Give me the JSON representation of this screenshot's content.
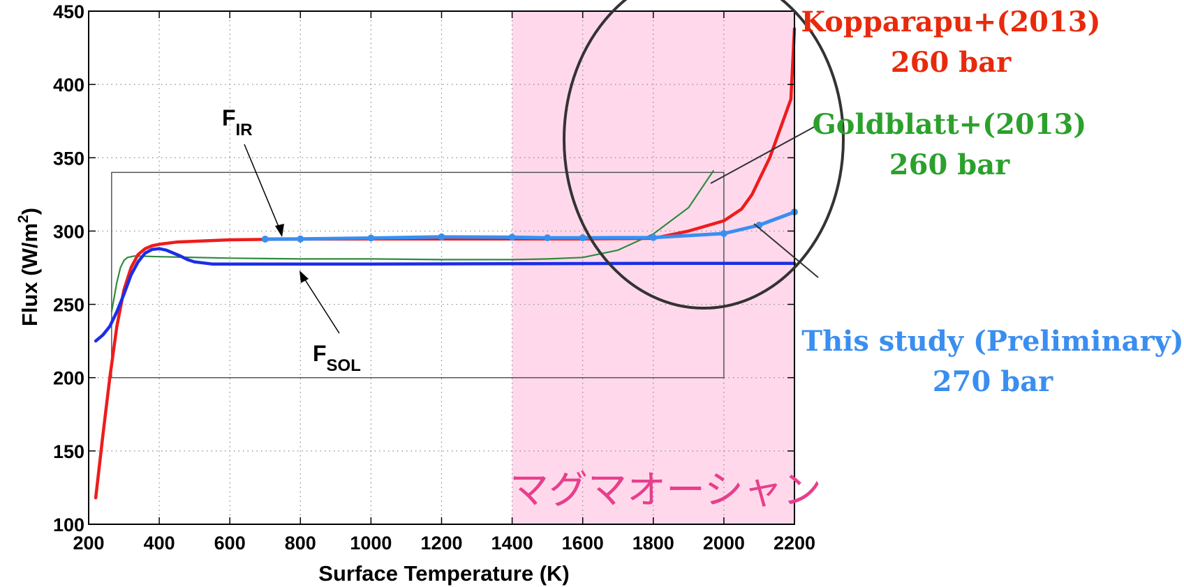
{
  "chart_data": {
    "type": "line",
    "xlabel": "Surface Temperature (K)",
    "ylabel": "Flux (W/m²)",
    "ylabel_parts": {
      "main": "Flux (W/m",
      "sup": "2",
      "end": ")"
    },
    "xlim": [
      200,
      2200
    ],
    "ylim": [
      100,
      450
    ],
    "xticks": [
      "200",
      "400",
      "600",
      "800",
      "1000",
      "1200",
      "1400",
      "1600",
      "1800",
      "2000",
      "2200"
    ],
    "yticks": [
      "100",
      "150",
      "200",
      "250",
      "300",
      "350",
      "400",
      "450"
    ],
    "grid": true,
    "shaded_region": {
      "x_start": 1400,
      "x_end": 2200,
      "label": "マグマオーシャン",
      "color": "#ffd9eb",
      "label_color": "#e83e8c"
    },
    "inset_box": {
      "x_start": 265,
      "x_end": 2000,
      "y_start": 200,
      "y_end": 340
    },
    "series": [
      {
        "id": "kopparapu-ir",
        "color": "#ee1c1c",
        "x": [
          220,
          240,
          260,
          280,
          300,
          320,
          340,
          360,
          380,
          400,
          450,
          500,
          600,
          700,
          800,
          1000,
          1200,
          1400,
          1600,
          1800,
          1900,
          2000,
          2050,
          2080,
          2100,
          2130,
          2160,
          2190,
          2200
        ],
        "y": [
          118,
          160,
          200,
          235,
          260,
          275,
          284,
          288,
          290,
          291,
          292.5,
          293,
          294,
          294.3,
          294.5,
          294.6,
          294.6,
          294.6,
          294.6,
          295,
          300,
          307,
          315,
          325,
          335,
          350,
          370,
          390,
          438
        ]
      },
      {
        "id": "goldblatt",
        "color": "#2e8b3e",
        "x": [
          265,
          280,
          290,
          300,
          310,
          330,
          400,
          600,
          800,
          1000,
          1200,
          1400,
          1500,
          1600,
          1700,
          1800,
          1900,
          1970
        ],
        "y": [
          245,
          265,
          275,
          280,
          282,
          283,
          282.5,
          281.5,
          281,
          281,
          280.5,
          280.5,
          281,
          282,
          287,
          298,
          316,
          341
        ]
      },
      {
        "id": "this-study-ir",
        "color": "#3a8ef0",
        "x": [
          700,
          800,
          1000,
          1200,
          1400,
          1500,
          1600,
          1800,
          2000,
          2100,
          2200
        ],
        "y": [
          294.5,
          294.6,
          295.2,
          296,
          295.8,
          295.4,
          295.4,
          295.6,
          298.3,
          304,
          313
        ]
      },
      {
        "id": "this-study-sol",
        "color": "#1c2de8",
        "x": [
          220,
          240,
          260,
          280,
          300,
          320,
          340,
          360,
          380,
          400,
          420,
          440,
          460,
          480,
          500,
          550,
          600,
          800,
          1000,
          1400,
          1800,
          2200
        ],
        "y": [
          225,
          229,
          235,
          245,
          257,
          270,
          279,
          285,
          287.5,
          288,
          287,
          285,
          283,
          280.5,
          279,
          277.5,
          277.5,
          277.5,
          277.5,
          277.7,
          278,
          278
        ]
      }
    ],
    "annotations": [
      {
        "id": "f-ir",
        "main": "F",
        "sub": "IR"
      },
      {
        "id": "f-sol",
        "main": "F",
        "sub": "SOL"
      }
    ],
    "legend": [
      {
        "line1": "Kopparapu+(2013)",
        "line2": "260 bar",
        "color": "#e82a0c"
      },
      {
        "line1": "Goldblatt+(2013)",
        "line2": "260 bar",
        "color": "#2ca02c"
      },
      {
        "line1": "This study (Preliminary)",
        "line2": "270 bar",
        "color": "#3a8ef0"
      }
    ]
  }
}
